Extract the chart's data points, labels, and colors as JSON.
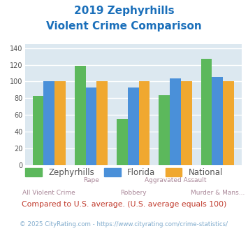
{
  "title_line1": "2019 Zephyrhills",
  "title_line2": "Violent Crime Comparison",
  "title_color": "#1a6fba",
  "categories": [
    "All Violent Crime",
    "Rape",
    "Robbery",
    "Aggravated Assault",
    "Murder & Mans..."
  ],
  "cat_top": [
    "",
    "Rape",
    "",
    "Aggravated Assault",
    ""
  ],
  "cat_bot": [
    "All Violent Crime",
    "",
    "Robbery",
    "",
    "Murder & Mans..."
  ],
  "zephyrhills": [
    83,
    119,
    55,
    84,
    127
  ],
  "florida": [
    100,
    93,
    93,
    104,
    105
  ],
  "national": [
    100,
    100,
    100,
    100,
    100
  ],
  "bar_colors": {
    "zephyrhills": "#5cb85c",
    "florida": "#4a90d9",
    "national": "#f0a830"
  },
  "ylim": [
    0,
    145
  ],
  "yticks": [
    0,
    20,
    40,
    60,
    80,
    100,
    120,
    140
  ],
  "legend_labels": [
    "Zephyrhills",
    "Florida",
    "National"
  ],
  "footnote1": "Compared to U.S. average. (U.S. average equals 100)",
  "footnote2": "© 2025 CityRating.com - https://www.cityrating.com/crime-statistics/",
  "footnote1_color": "#c0392b",
  "footnote2_color": "#7faacc",
  "bg_color": "#dce8f0",
  "fig_bg": "#ffffff",
  "grid_color": "#ffffff"
}
